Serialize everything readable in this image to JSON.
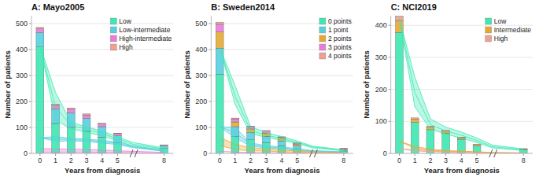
{
  "chart_data": [
    {
      "type": "bar",
      "title": "A: Mayo2005",
      "x_label": "Years from diagnosis",
      "y_label": "Number of patients",
      "stacked": true,
      "grid": true,
      "legend": "upper right",
      "xlim": [
        -0.55,
        8.6
      ],
      "xticks": [
        0,
        1,
        2,
        3,
        4,
        5,
        8
      ],
      "ylim": [
        0,
        530
      ],
      "yticks": [
        0,
        100,
        200,
        300,
        400,
        500
      ],
      "x": [
        0,
        1,
        2,
        3,
        4,
        5,
        8
      ],
      "series": [
        {
          "name": "Low",
          "color": "#3de8b2",
          "values": [
            410,
            115,
            100,
            85,
            63,
            40,
            20
          ]
        },
        {
          "name": "Low-intermediate",
          "color": "#56d0e0",
          "values": [
            55,
            55,
            55,
            50,
            40,
            28,
            9
          ]
        },
        {
          "name": "High-intermediate",
          "color": "#e87dd8",
          "values": [
            15,
            15,
            15,
            13,
            10,
            8,
            3
          ]
        },
        {
          "name": "High",
          "color": "#f0a090",
          "values": [
            5,
            5,
            5,
            4,
            3,
            2,
            1
          ]
        },
        {
          "type": "line",
          "color": "#3de8b2",
          "x": [
            0,
            1,
            2,
            3,
            4,
            5,
            6,
            8
          ],
          "values": [
            415,
            235,
            120,
            102,
            86,
            64,
            42,
            21
          ]
        },
        {
          "type": "line",
          "color": "#3de8b2",
          "x": [
            0,
            1,
            2,
            3,
            4,
            5,
            6,
            8
          ],
          "values": [
            415,
            178,
            108,
            93,
            77,
            56,
            35,
            17
          ]
        },
        {
          "type": "line",
          "color": "#3de8b2",
          "x": [
            0,
            1,
            2,
            3,
            4,
            5,
            6,
            8
          ],
          "values": [
            415,
            128,
            95,
            82,
            67,
            48,
            28,
            14
          ]
        },
        {
          "type": "line",
          "color": "#56d0e0",
          "x": [
            0,
            1,
            2,
            3,
            4,
            5,
            6,
            8
          ],
          "values": [
            60,
            65,
            58,
            55,
            50,
            44,
            28,
            11
          ]
        },
        {
          "type": "line",
          "color": "#56d0e0",
          "x": [
            0,
            1,
            2,
            3,
            4,
            5,
            6,
            8
          ],
          "values": [
            60,
            56,
            53,
            51,
            45,
            39,
            25,
            9
          ]
        },
        {
          "type": "line",
          "color": "#56d0e0",
          "x": [
            0,
            1,
            2,
            3,
            4,
            5,
            6,
            8
          ],
          "values": [
            60,
            47,
            48,
            46,
            40,
            34,
            22,
            8
          ]
        },
        {
          "type": "line",
          "color": "#e87dd8",
          "x": [
            0,
            1,
            2,
            3,
            4,
            5,
            6,
            8
          ],
          "values": [
            18,
            18,
            16,
            15,
            13,
            10,
            8,
            4
          ]
        },
        {
          "type": "line",
          "color": "#e87dd8",
          "x": [
            0,
            1,
            2,
            3,
            4,
            5,
            6,
            8
          ],
          "values": [
            5,
            5,
            5,
            5,
            4,
            3,
            2,
            1
          ]
        }
      ]
    },
    {
      "type": "bar",
      "title": "B: Sweden2014",
      "x_label": "Years from diagnosis",
      "y_label": "Number of patients",
      "stacked": true,
      "grid": true,
      "legend": "upper right",
      "xlim": [
        -0.55,
        8.6
      ],
      "xticks": [
        0,
        1,
        2,
        3,
        4,
        5,
        8
      ],
      "ylim": [
        0,
        530
      ],
      "yticks": [
        0,
        100,
        200,
        300,
        400,
        500
      ],
      "x": [
        0,
        1,
        2,
        3,
        4,
        5,
        8
      ],
      "series": [
        {
          "name": "0 points",
          "color": "#3de8b2",
          "values": [
            305,
            65,
            52,
            42,
            30,
            18,
            9
          ]
        },
        {
          "name": "1 point",
          "color": "#56d0e0",
          "values": [
            100,
            38,
            28,
            24,
            18,
            11,
            5
          ]
        },
        {
          "name": "2 points",
          "color": "#e8a830",
          "values": [
            62,
            18,
            14,
            12,
            10,
            6,
            3
          ]
        },
        {
          "name": "3 points",
          "color": "#e87dd8",
          "values": [
            30,
            12,
            9,
            8,
            5,
            4,
            2
          ]
        },
        {
          "name": "4 points",
          "color": "#f0a090",
          "values": [
            8,
            3,
            2,
            2,
            1,
            1,
            1
          ]
        },
        {
          "type": "line",
          "color": "#3de8b2",
          "x": [
            0,
            1,
            2,
            3,
            4,
            5,
            6,
            8
          ],
          "values": [
            408,
            260,
            103,
            80,
            65,
            48,
            28,
            14
          ]
        },
        {
          "type": "line",
          "color": "#3de8b2",
          "x": [
            0,
            1,
            2,
            3,
            4,
            5,
            6,
            8
          ],
          "values": [
            408,
            220,
            88,
            70,
            57,
            43,
            25,
            12
          ]
        },
        {
          "type": "line",
          "color": "#3de8b2",
          "x": [
            0,
            1,
            2,
            3,
            4,
            5,
            6,
            8
          ],
          "values": [
            408,
            188,
            76,
            62,
            50,
            38,
            21,
            10
          ]
        },
        {
          "type": "line",
          "color": "#56d0e0",
          "x": [
            0,
            1,
            2,
            3,
            4,
            5,
            6,
            8
          ],
          "values": [
            103,
            100,
            40,
            30,
            25,
            18,
            11,
            6
          ]
        },
        {
          "type": "line",
          "color": "#56d0e0",
          "x": [
            0,
            1,
            2,
            3,
            4,
            5,
            6,
            8
          ],
          "values": [
            103,
            80,
            34,
            25,
            21,
            15,
            9,
            5
          ]
        },
        {
          "type": "line",
          "color": "#56d0e0",
          "x": [
            0,
            1,
            2,
            3,
            4,
            5,
            6,
            8
          ],
          "values": [
            103,
            60,
            28,
            21,
            17,
            12,
            7,
            4
          ]
        },
        {
          "type": "line",
          "color": "#e8a830",
          "x": [
            0,
            1,
            2,
            3,
            4,
            5,
            6,
            8
          ],
          "values": [
            62,
            35,
            22,
            17,
            13,
            9,
            6,
            3
          ]
        },
        {
          "type": "line",
          "color": "#e8a830",
          "x": [
            0,
            1,
            2,
            3,
            4,
            5,
            6,
            8
          ],
          "values": [
            30,
            15,
            10,
            9,
            6,
            5,
            4,
            2
          ]
        },
        {
          "type": "line",
          "color": "#e87dd8",
          "x": [
            0,
            1,
            2,
            3,
            4,
            5,
            6,
            8
          ],
          "values": [
            8,
            5,
            4,
            3,
            2,
            1,
            1,
            1
          ]
        }
      ]
    },
    {
      "type": "bar",
      "title": "C: NCI2019",
      "x_label": "Years from diagnosis",
      "y_label": "Number of patients",
      "stacked": true,
      "grid": true,
      "legend": "upper right",
      "xlim": [
        -0.55,
        8.6
      ],
      "xticks": [
        0,
        1,
        2,
        3,
        4,
        5,
        8
      ],
      "ylim": [
        0,
        430
      ],
      "yticks": [
        0,
        100,
        200,
        300,
        400
      ],
      "x": [
        0,
        1,
        2,
        3,
        4,
        5,
        8
      ],
      "series": [
        {
          "name": "Low",
          "color": "#3de8b2",
          "values": [
            378,
            97,
            74,
            63,
            44,
            24,
            12
          ]
        },
        {
          "name": "Intermediate",
          "color": "#e8a830",
          "values": [
            37,
            10,
            8,
            6,
            5,
            4,
            2
          ]
        },
        {
          "name": "High",
          "color": "#f0a090",
          "values": [
            14,
            4,
            3,
            3,
            2,
            1,
            1
          ]
        },
        {
          "type": "line",
          "color": "#3de8b2",
          "x": [
            0,
            1,
            2,
            3,
            4,
            5,
            6,
            8
          ],
          "values": [
            422,
            238,
            108,
            82,
            67,
            48,
            26,
            14
          ]
        },
        {
          "type": "line",
          "color": "#3de8b2",
          "x": [
            0,
            1,
            2,
            3,
            4,
            5,
            6,
            8
          ],
          "values": [
            422,
            190,
            90,
            70,
            57,
            40,
            21,
            11
          ]
        },
        {
          "type": "line",
          "color": "#3de8b2",
          "x": [
            0,
            1,
            2,
            3,
            4,
            5,
            6,
            8
          ],
          "values": [
            422,
            145,
            76,
            60,
            48,
            34,
            17,
            9
          ]
        },
        {
          "type": "line",
          "color": "#e8a830",
          "x": [
            0,
            1,
            2,
            3,
            4,
            5,
            6,
            8
          ],
          "values": [
            38,
            22,
            13,
            9,
            7,
            5,
            3,
            2
          ]
        },
        {
          "type": "line",
          "color": "#e8a830",
          "x": [
            0,
            1,
            2,
            3,
            4,
            5,
            6,
            8
          ],
          "values": [
            38,
            16,
            10,
            7,
            6,
            4,
            2,
            1
          ]
        },
        {
          "type": "line",
          "color": "#f0a090",
          "x": [
            0,
            1,
            2,
            3,
            4,
            5,
            6,
            8
          ],
          "values": [
            14,
            12,
            7,
            5,
            4,
            2,
            2,
            1
          ]
        },
        {
          "type": "line",
          "color": "#f0a090",
          "x": [
            0,
            1,
            2,
            3,
            4,
            5,
            6,
            8
          ],
          "values": [
            14,
            8,
            5,
            4,
            3,
            2,
            1,
            1
          ]
        }
      ]
    }
  ]
}
